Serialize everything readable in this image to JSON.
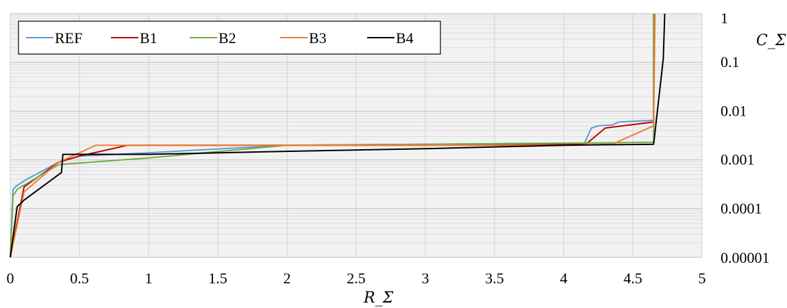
{
  "chart_data": {
    "type": "line",
    "title": "",
    "xlabel": "R_Σ",
    "ylabel": "C_Σ",
    "x_axis": {
      "min": 0,
      "max": 5,
      "ticks": [
        0,
        0.5,
        1,
        1.5,
        2,
        2.5,
        3,
        3.5,
        4,
        4.5,
        5
      ],
      "tick_labels": [
        "0",
        "0.5",
        "1",
        "1.5",
        "2",
        "2.5",
        "3",
        "3.5",
        "4",
        "4.5",
        "5"
      ]
    },
    "y_axis": {
      "scale": "log",
      "min": 1e-05,
      "max": 1,
      "position": "right",
      "ticks": [
        1e-05,
        0.0001,
        0.001,
        0.01,
        0.1,
        1
      ],
      "tick_labels": [
        "0.00001",
        "0.0001",
        "0.001",
        "0.01",
        "0.1",
        "1"
      ]
    },
    "grid": true,
    "legend": {
      "position": "top-left",
      "entries": [
        "REF",
        "B1",
        "B2",
        "B3",
        "B4"
      ]
    },
    "series": [
      {
        "name": "REF",
        "color": "#5b9bd5",
        "points": [
          [
            0,
            1e-05
          ],
          [
            0.02,
            0.00025
          ],
          [
            0.05,
            0.0003
          ],
          [
            0.12,
            0.0004
          ],
          [
            0.35,
            0.0009
          ],
          [
            0.5,
            0.0012
          ],
          [
            1,
            0.0014
          ],
          [
            2,
            0.002
          ],
          [
            3,
            0.0021
          ],
          [
            4,
            0.0022
          ],
          [
            4.15,
            0.0022
          ],
          [
            4.2,
            0.0045
          ],
          [
            4.25,
            0.005
          ],
          [
            4.35,
            0.0052
          ],
          [
            4.4,
            0.006
          ],
          [
            4.5,
            0.0062
          ],
          [
            4.65,
            0.0065
          ],
          [
            4.65,
            1
          ]
        ]
      },
      {
        "name": "B1",
        "color": "#c00000",
        "points": [
          [
            0,
            1e-05
          ],
          [
            0.1,
            0.00028
          ],
          [
            0.35,
            0.0009
          ],
          [
            0.5,
            0.0012
          ],
          [
            0.85,
            0.002
          ],
          [
            2,
            0.002
          ],
          [
            3,
            0.002
          ],
          [
            4,
            0.0021
          ],
          [
            4.17,
            0.0022
          ],
          [
            4.3,
            0.0045
          ],
          [
            4.65,
            0.006
          ],
          [
            4.65,
            1
          ]
        ]
      },
      {
        "name": "B2",
        "color": "#70ad47",
        "points": [
          [
            0,
            1e-05
          ],
          [
            0.02,
            0.00018
          ],
          [
            0.05,
            0.00025
          ],
          [
            0.35,
            0.0008
          ],
          [
            1,
            0.0011
          ],
          [
            2,
            0.002
          ],
          [
            3,
            0.0021
          ],
          [
            4,
            0.0022
          ],
          [
            4.65,
            0.0023
          ],
          [
            4.65,
            1
          ]
        ]
      },
      {
        "name": "B3",
        "color": "#ed7d31",
        "points": [
          [
            0,
            1e-05
          ],
          [
            0.1,
            0.00022
          ],
          [
            0.35,
            0.0009
          ],
          [
            0.62,
            0.002
          ],
          [
            1,
            0.002
          ],
          [
            2,
            0.002
          ],
          [
            3,
            0.002
          ],
          [
            4,
            0.002
          ],
          [
            4.35,
            0.0021
          ],
          [
            4.65,
            0.005
          ],
          [
            4.66,
            1
          ]
        ]
      },
      {
        "name": "B4",
        "color": "#000000",
        "points": [
          [
            0,
            1e-05
          ],
          [
            0.05,
            0.00011
          ],
          [
            0.1,
            0.00015
          ],
          [
            0.37,
            0.00055
          ],
          [
            0.38,
            0.0013
          ],
          [
            1,
            0.0013
          ],
          [
            2,
            0.0015
          ],
          [
            3,
            0.0017
          ],
          [
            4,
            0.002
          ],
          [
            4.65,
            0.0021
          ],
          [
            4.72,
            0.12
          ],
          [
            4.73,
            1
          ]
        ]
      }
    ]
  }
}
